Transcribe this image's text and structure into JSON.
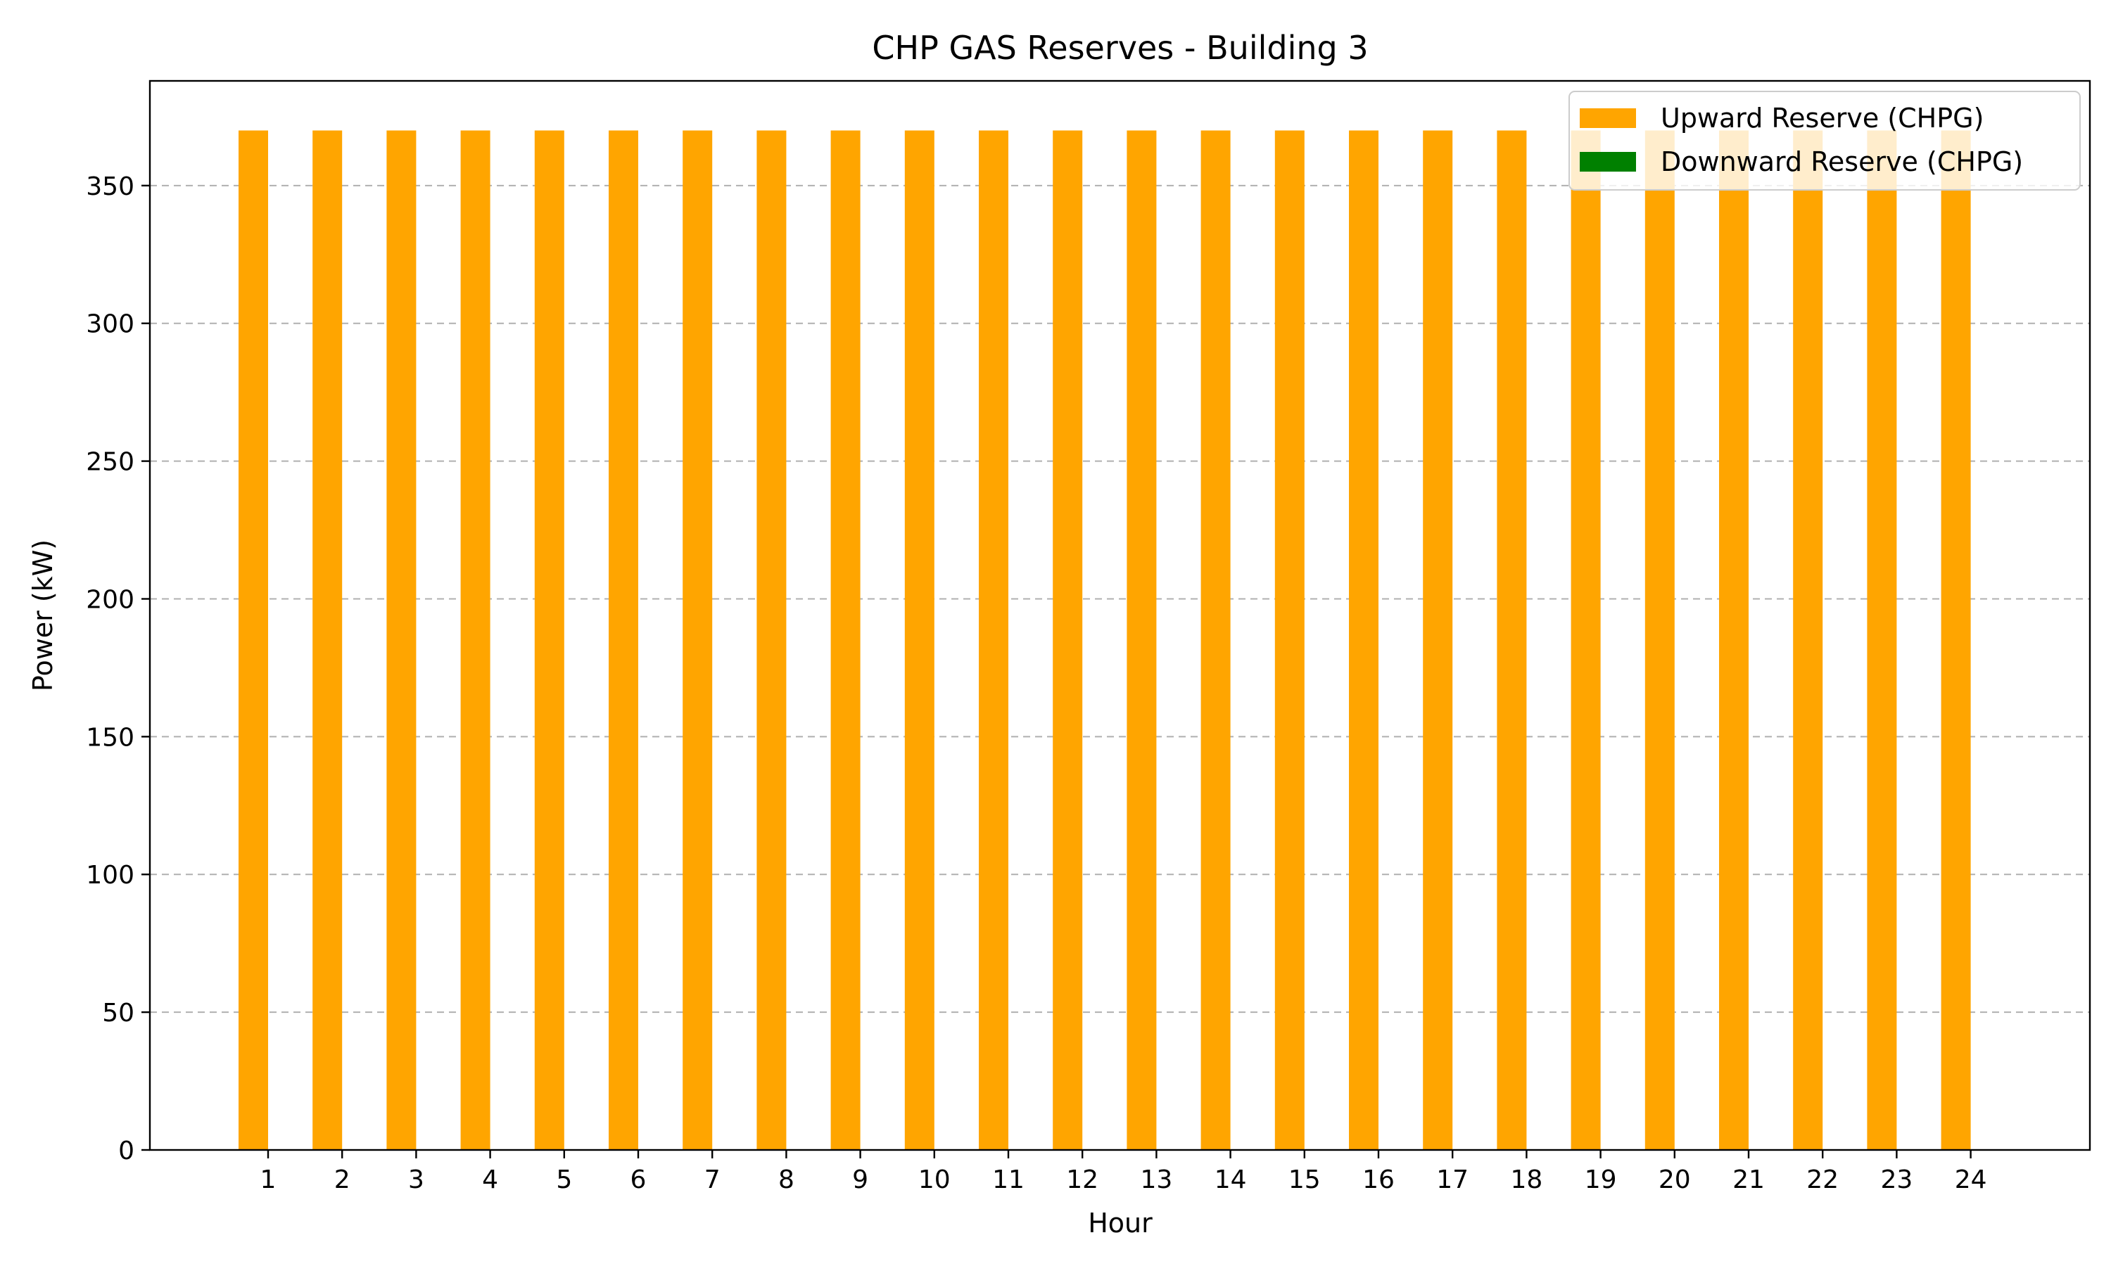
{
  "chart_data": {
    "type": "bar",
    "title": "CHP GAS Reserves - Building 3",
    "xlabel": "Hour",
    "ylabel": "Power (kW)",
    "categories": [
      "1",
      "2",
      "3",
      "4",
      "5",
      "6",
      "7",
      "8",
      "9",
      "10",
      "11",
      "12",
      "13",
      "14",
      "15",
      "16",
      "17",
      "18",
      "19",
      "20",
      "21",
      "22",
      "23",
      "24"
    ],
    "series": [
      {
        "name": "Upward Reserve (CHPG)",
        "color": "#ffa500",
        "values": [
          370,
          370,
          370,
          370,
          370,
          370,
          370,
          370,
          370,
          370,
          370,
          370,
          370,
          370,
          370,
          370,
          370,
          370,
          370,
          370,
          370,
          370,
          370,
          370
        ]
      },
      {
        "name": "Downward Reserve (CHPG)",
        "color": "#008000",
        "values": [
          0,
          0,
          0,
          0,
          0,
          0,
          0,
          0,
          0,
          0,
          0,
          0,
          0,
          0,
          0,
          0,
          0,
          0,
          0,
          0,
          0,
          0,
          0,
          0
        ]
      }
    ],
    "ylim": [
      0,
      388
    ],
    "yticks": [
      0,
      50,
      100,
      150,
      200,
      250,
      300,
      350
    ],
    "grid": "y-dashed",
    "legend_position": "top-right"
  }
}
